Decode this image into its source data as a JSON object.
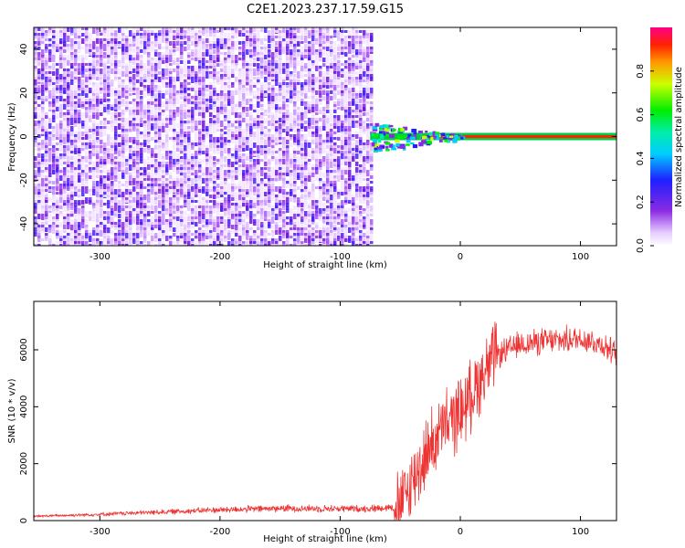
{
  "title": "C2E1.2023.237.17.59.G15",
  "chart_data": [
    {
      "type": "heatmap",
      "xlabel": "Height of straight line (km)",
      "ylabel": "Frequency (Hz)",
      "xlim": [
        -355,
        130
      ],
      "ylim": [
        -50,
        50
      ],
      "xticks": [
        -300,
        -200,
        -100,
        0,
        100
      ],
      "yticks": [
        -40,
        -20,
        0,
        20,
        40
      ],
      "noise_region_x": [
        -355,
        -75
      ],
      "signal_onset_x": -75,
      "carrier_frequency_hz": 0,
      "colorbar": {
        "label": "Normalized spectral amplitude",
        "range": [
          0.0,
          1.0
        ],
        "ticks": [
          0.0,
          0.2,
          0.4,
          0.6,
          0.8
        ]
      }
    },
    {
      "type": "line",
      "xlabel": "Height of straight line (km)",
      "ylabel": "SNR (10 * v/v)",
      "xlim": [
        -355,
        130
      ],
      "ylim": [
        0,
        7700
      ],
      "xticks": [
        -300,
        -200,
        -100,
        0,
        100
      ],
      "yticks": [
        0,
        2000,
        4000,
        6000
      ],
      "color": "#ee3333",
      "profile": {
        "x": [
          -355,
          -300,
          -250,
          -200,
          -150,
          -100,
          -75,
          -55,
          -45,
          -35,
          -25,
          -15,
          -5,
          5,
          15,
          30,
          50,
          70,
          90,
          100,
          110,
          120,
          130
        ],
        "y": [
          150,
          220,
          300,
          380,
          430,
          420,
          420,
          480,
          900,
          1800,
          2600,
          3200,
          3600,
          4100,
          4900,
          5800,
          6200,
          6300,
          6350,
          6400,
          6300,
          6150,
          5800
        ]
      }
    }
  ]
}
